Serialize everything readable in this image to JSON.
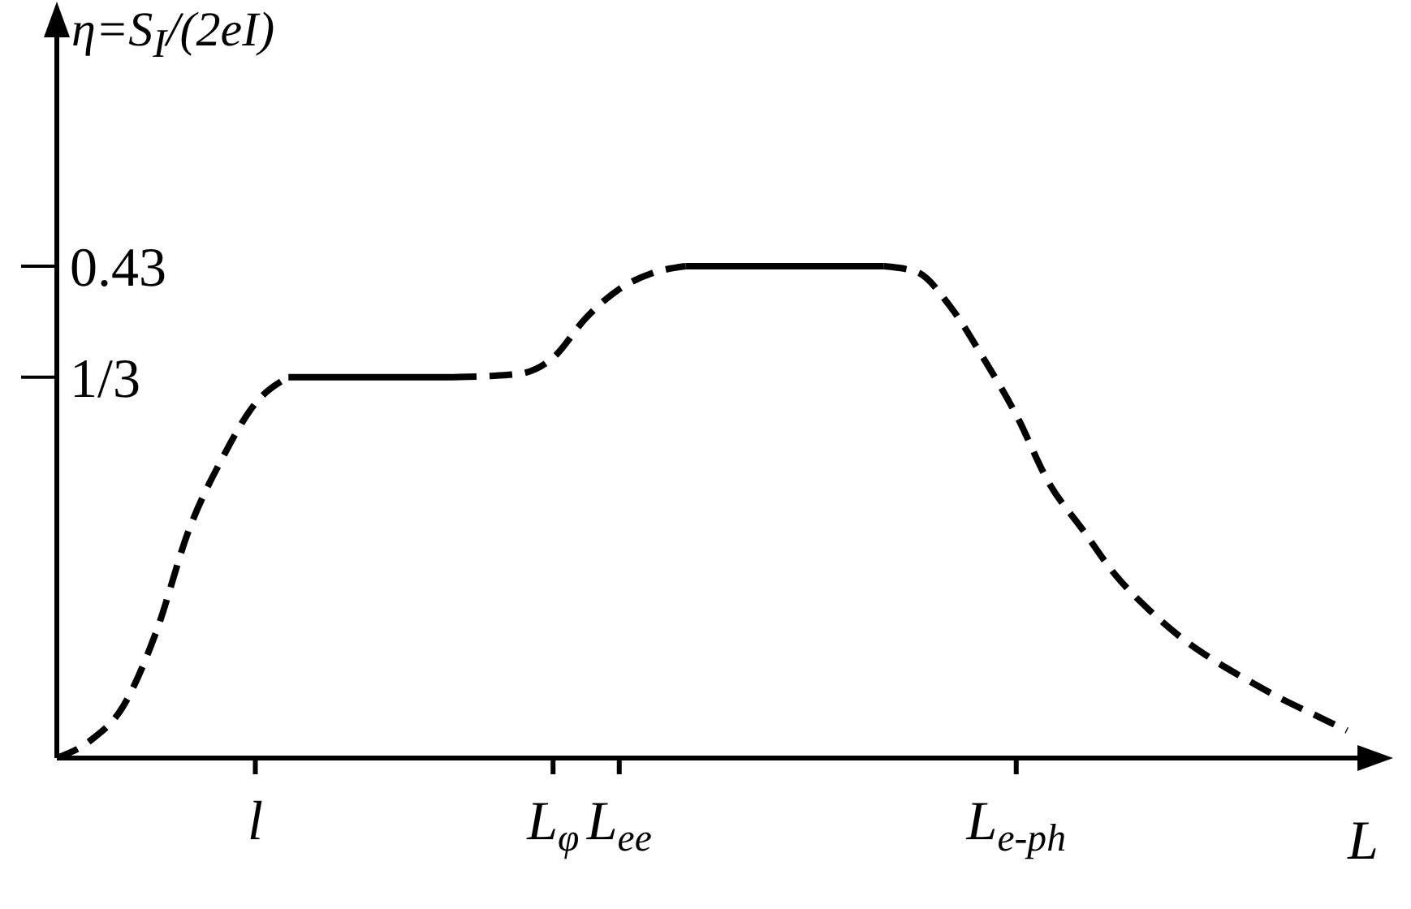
{
  "chart_data": {
    "type": "line",
    "xlabel": "L",
    "ylabel": "η=S$_{I}$/(2eI)",
    "categories": [
      null,
      null,
      null,
      null,
      null,
      null,
      "l",
      null,
      null,
      null,
      null,
      null,
      null,
      null,
      null,
      "L$_{φ}$",
      null,
      "L$_{ee}$",
      null,
      null,
      null,
      null,
      null,
      null,
      null,
      null,
      null,
      null,
      null,
      "L$_{e-ph}$",
      null,
      null,
      null,
      null,
      null,
      null,
      null,
      null,
      null,
      null,
      null
    ],
    "ylim": [
      0,
      0.65
    ],
    "yticks": [
      {
        "value": 0.333,
        "label": "1/3"
      },
      {
        "value": 0.43,
        "label": "0.43"
      }
    ],
    "series": [
      {
        "color": "#000000",
        "line_style": "dashed",
        "values": [
          0,
          0.015,
          0.045,
          0.11,
          0.2,
          0.262,
          0.31,
          0.333,
          null,
          null,
          null,
          null,
          null,
          null,
          null,
          null,
          null,
          null,
          null,
          null,
          null,
          null,
          null,
          null,
          null,
          null,
          null,
          null,
          null,
          null,
          null,
          null,
          null,
          null,
          null,
          null,
          null,
          null,
          null,
          null,
          null
        ]
      },
      {
        "color": "#000000",
        "line_style": "solid",
        "values": [
          null,
          null,
          null,
          null,
          null,
          null,
          null,
          0.333,
          0.333,
          0.333,
          0.333,
          0.333,
          0.333,
          null,
          null,
          null,
          null,
          null,
          null,
          null,
          null,
          null,
          null,
          null,
          null,
          null,
          null,
          null,
          null,
          null,
          null,
          null,
          null,
          null,
          null,
          null,
          null,
          null,
          null,
          null,
          null
        ]
      },
      {
        "color": "#000000",
        "line_style": "dashed",
        "values": [
          null,
          null,
          null,
          null,
          null,
          null,
          null,
          null,
          null,
          null,
          null,
          null,
          0.333,
          0.334,
          0.336,
          0.35,
          0.385,
          0.41,
          0.424,
          0.43,
          null,
          null,
          null,
          null,
          null,
          null,
          null,
          null,
          null,
          null,
          null,
          null,
          null,
          null,
          null,
          null,
          null,
          null,
          null,
          null,
          null
        ]
      },
      {
        "color": "#000000",
        "line_style": "solid",
        "values": [
          null,
          null,
          null,
          null,
          null,
          null,
          null,
          null,
          null,
          null,
          null,
          null,
          null,
          null,
          null,
          null,
          null,
          null,
          null,
          0.43,
          0.43,
          0.43,
          0.43,
          0.43,
          0.43,
          0.43,
          null,
          null,
          null,
          null,
          null,
          null,
          null,
          null,
          null,
          null,
          null,
          null,
          null,
          null,
          null
        ]
      },
      {
        "color": "#000000",
        "line_style": "dashed",
        "values": [
          null,
          null,
          null,
          null,
          null,
          null,
          null,
          null,
          null,
          null,
          null,
          null,
          null,
          null,
          null,
          null,
          null,
          null,
          null,
          null,
          null,
          null,
          null,
          null,
          null,
          0.43,
          0.425,
          0.395,
          0.35,
          0.3,
          0.24,
          0.2,
          0.16,
          0.13,
          0.105,
          0.085,
          0.068,
          0.052,
          0.038,
          0.024,
          null
        ]
      }
    ]
  }
}
